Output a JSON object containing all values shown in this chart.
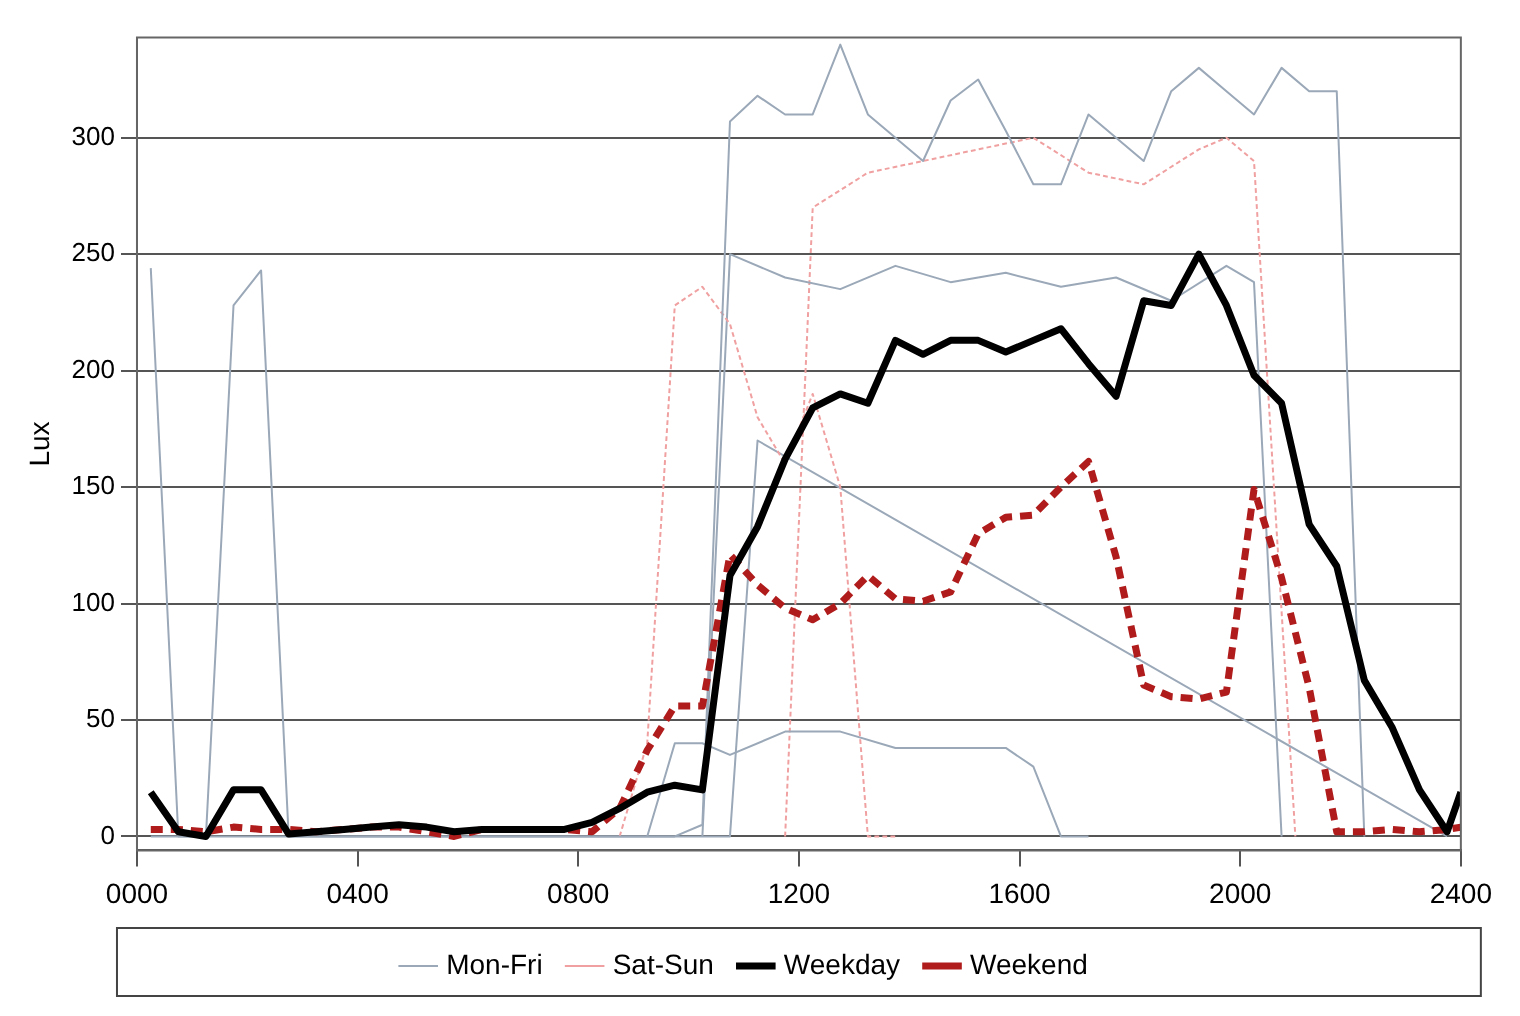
{
  "chart_data": {
    "type": "line",
    "ylabel": "Lux",
    "xlim": [
      0,
      2400
    ],
    "xticks": [
      {
        "value": 0,
        "label": "0000"
      },
      {
        "value": 400,
        "label": "0400"
      },
      {
        "value": 800,
        "label": "0800"
      },
      {
        "value": 1200,
        "label": "1200"
      },
      {
        "value": 1600,
        "label": "1600"
      },
      {
        "value": 2000,
        "label": "2000"
      },
      {
        "value": 2400,
        "label": "2400"
      }
    ],
    "ylim": [
      -6,
      343
    ],
    "yticks": [
      0,
      50,
      100,
      150,
      200,
      250,
      300
    ],
    "grid": "y",
    "legend": "bottom",
    "marker": "none",
    "series": [
      {
        "name": "Mon-Fri",
        "color": "#9aa8b8",
        "line_style": "solid",
        "x": [
          25,
          975,
          1025,
          1075,
          1125,
          1175,
          1225,
          1275,
          1325,
          1375,
          1425,
          1475,
          1525,
          1575,
          1625,
          1675,
          1725,
          1775,
          1825,
          1875,
          1925,
          1975,
          2025,
          2075,
          2125,
          2175,
          2225
        ],
        "values": [
          0,
          0,
          5,
          307,
          318,
          310,
          310,
          340,
          310,
          300,
          290,
          316,
          325,
          303,
          280,
          280,
          310,
          300,
          290,
          320,
          330,
          320,
          310,
          330,
          320,
          320,
          0
        ]
      },
      {
        "name": "Sat-Sun",
        "color": "#f0a0a0",
        "line_style": "dashed",
        "x": [
          875,
          925,
          975,
          1025,
          1075,
          1125,
          1175,
          1225,
          1275,
          1325,
          1375
        ],
        "values": [
          0,
          40,
          228,
          236,
          220,
          180,
          160,
          190,
          150,
          0,
          0
        ]
      },
      {
        "color": "#9aa8b8",
        "line_style": "solid",
        "x": [
          25,
          75,
          125,
          175,
          225,
          275,
          325,
          1075,
          1125,
          2375
        ],
        "values": [
          244,
          0,
          0,
          228,
          243,
          0,
          0,
          0,
          170,
          0
        ]
      },
      {
        "color": "#9aa8b8",
        "line_style": "solid",
        "x": [
          925,
          975,
          1025,
          1075,
          1175,
          1275,
          1375,
          1475,
          1575,
          1625,
          1675,
          1725
        ],
        "values": [
          0,
          40,
          40,
          35,
          45,
          45,
          38,
          38,
          38,
          30,
          0,
          0
        ]
      },
      {
        "color": "#9aa8b8",
        "line_style": "solid",
        "x": [
          1025,
          1075,
          1175,
          1275,
          1375,
          1475,
          1575,
          1675,
          1775,
          1875,
          1975,
          2025,
          2075
        ],
        "values": [
          0,
          250,
          240,
          235,
          245,
          238,
          242,
          236,
          240,
          230,
          245,
          238,
          0
        ]
      },
      {
        "color": "#f0a0a0",
        "line_style": "dashed",
        "x": [
          1175,
          1225,
          1325,
          1425,
          1525,
          1625,
          1725,
          1825,
          1925,
          1975,
          2025,
          2100
        ],
        "values": [
          0,
          270,
          285,
          290,
          295,
          300,
          285,
          280,
          295,
          300,
          290,
          0
        ]
      },
      {
        "name": "Weekday",
        "color": "#000000",
        "line_style": "solid",
        "x": [
          25,
          75,
          125,
          175,
          225,
          275,
          325,
          375,
          425,
          475,
          525,
          575,
          625,
          675,
          725,
          775,
          825,
          875,
          925,
          975,
          1025,
          1075,
          1125,
          1175,
          1225,
          1275,
          1325,
          1375,
          1425,
          1475,
          1525,
          1575,
          1625,
          1675,
          1725,
          1775,
          1825,
          1875,
          1925,
          1975,
          2025,
          2075,
          2125,
          2175,
          2225,
          2275,
          2325,
          2375,
          2400
        ],
        "values": [
          19,
          2,
          0,
          20,
          20,
          1,
          2,
          3,
          4,
          5,
          4,
          2,
          3,
          3,
          3,
          3,
          6,
          12,
          19,
          22,
          20,
          112,
          133,
          162,
          184,
          190,
          186,
          213,
          207,
          213,
          213,
          208,
          213,
          218,
          203,
          189,
          230,
          228,
          250,
          228,
          198,
          186,
          134,
          116,
          67,
          47,
          20,
          2,
          19
        ]
      },
      {
        "name": "Weekend",
        "color": "#b01c1c",
        "line_style": "dashed",
        "x": [
          25,
          75,
          125,
          175,
          225,
          275,
          325,
          375,
          425,
          475,
          525,
          575,
          625,
          675,
          725,
          775,
          825,
          875,
          925,
          975,
          1025,
          1075,
          1125,
          1175,
          1225,
          1275,
          1325,
          1375,
          1425,
          1475,
          1525,
          1575,
          1625,
          1675,
          1725,
          1775,
          1825,
          1875,
          1925,
          1975,
          2025,
          2075,
          2125,
          2175,
          2225,
          2275,
          2325,
          2375,
          2400
        ],
        "values": [
          3,
          3,
          2,
          4,
          3,
          3,
          2,
          3,
          4,
          4,
          2,
          0,
          3,
          3,
          3,
          3,
          2,
          12,
          37,
          56,
          56,
          121,
          108,
          98,
          93,
          100,
          112,
          102,
          101,
          105,
          130,
          137,
          138,
          150,
          161,
          120,
          65,
          60,
          59,
          62,
          149,
          111,
          64,
          2,
          2,
          3,
          2,
          3,
          4
        ]
      }
    ]
  }
}
